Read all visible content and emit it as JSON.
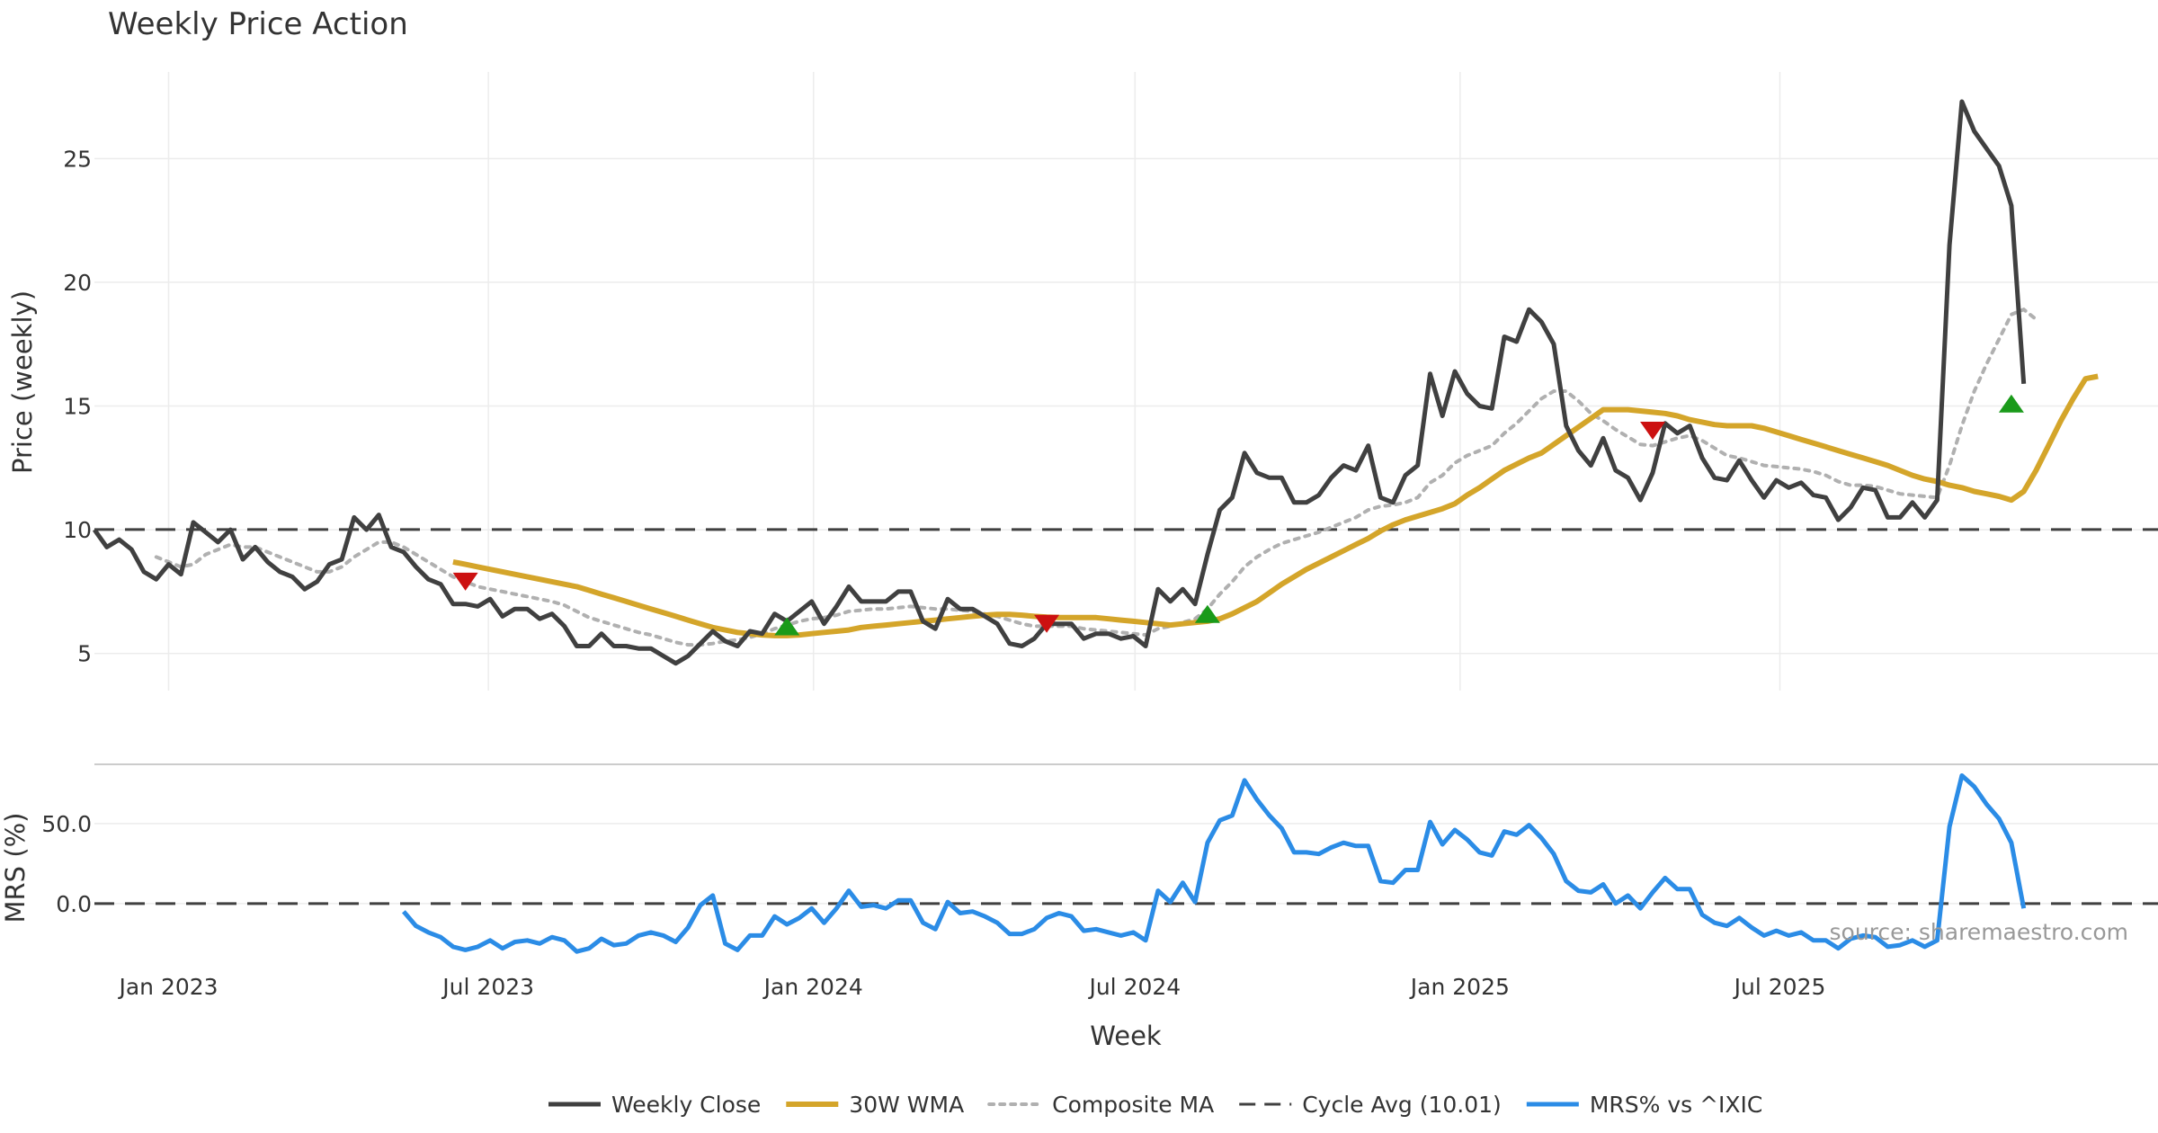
{
  "colors": {
    "close": "#404040",
    "wma": "#d4a52a",
    "composite": "#b0b0b0",
    "cycle": "#404040",
    "mrs": "#2b8ce6",
    "buy": "#1a9a1a",
    "sell": "#cc1111",
    "grid": "#ececec",
    "divider": "#cccccc"
  },
  "chart_data": {
    "type": "line",
    "title": "Weekly Price Action",
    "xlabel": "Week",
    "source": "source: sharemaestro.com",
    "x_ticks": [
      {
        "date": "2023-01-01",
        "label": "Jan 2023"
      },
      {
        "date": "2023-07-01",
        "label": "Jul 2023"
      },
      {
        "date": "2024-01-01",
        "label": "Jan 2024"
      },
      {
        "date": "2024-07-01",
        "label": "Jul 2024"
      },
      {
        "date": "2025-01-01",
        "label": "Jan 2025"
      },
      {
        "date": "2025-07-01",
        "label": "Jul 2025"
      }
    ],
    "x_range": [
      "2022-11-20",
      "2026-01-31"
    ],
    "x_start": "2022-11-20",
    "week_step_days": 7,
    "price_panel": {
      "ylabel": "Price (weekly)",
      "ylim": [
        3.5,
        28.5
      ],
      "y_ticks": [
        5,
        10,
        15,
        20,
        25
      ],
      "cycle_avg": 10.01,
      "weekly_close": [
        10.0,
        9.3,
        9.6,
        9.2,
        8.3,
        8.0,
        8.6,
        8.2,
        10.3,
        9.9,
        9.5,
        10.0,
        8.8,
        9.3,
        8.7,
        8.3,
        8.1,
        7.6,
        7.9,
        8.6,
        8.8,
        10.5,
        10.0,
        10.6,
        9.3,
        9.1,
        8.5,
        8.0,
        7.8,
        7.0,
        7.0,
        6.9,
        7.2,
        6.5,
        6.8,
        6.8,
        6.4,
        6.6,
        6.1,
        5.3,
        5.3,
        5.8,
        5.3,
        5.3,
        5.2,
        5.2,
        4.9,
        4.6,
        4.9,
        5.4,
        5.9,
        5.5,
        5.3,
        5.9,
        5.8,
        6.6,
        6.3,
        6.7,
        7.1,
        6.2,
        6.9,
        7.7,
        7.1,
        7.1,
        7.1,
        7.5,
        7.5,
        6.3,
        6.0,
        7.2,
        6.8,
        6.8,
        6.5,
        6.2,
        5.4,
        5.3,
        5.6,
        6.2,
        6.2,
        6.2,
        5.6,
        5.8,
        5.8,
        5.6,
        5.7,
        5.3,
        7.6,
        7.1,
        7.6,
        7.0,
        9.0,
        10.8,
        11.3,
        13.1,
        12.3,
        12.1,
        12.1,
        11.1,
        11.1,
        11.4,
        12.1,
        12.6,
        12.4,
        13.4,
        11.3,
        11.1,
        12.2,
        12.6,
        16.3,
        14.6,
        16.4,
        15.5,
        15.0,
        14.9,
        17.8,
        17.6,
        18.9,
        18.4,
        17.5,
        14.2,
        13.2,
        12.6,
        13.7,
        12.4,
        12.1,
        11.2,
        12.3,
        14.3,
        13.9,
        14.2,
        12.9,
        12.1,
        12.0,
        12.8,
        12.0,
        11.3,
        12.0,
        11.7,
        11.9,
        11.4,
        11.3,
        10.4,
        10.9,
        11.7,
        11.6,
        10.5,
        10.5,
        11.1,
        10.5,
        11.2,
        21.5,
        27.3,
        26.1,
        25.4,
        24.7,
        23.1,
        15.9
      ],
      "wma_30w": [
        null,
        null,
        null,
        null,
        null,
        null,
        null,
        null,
        null,
        null,
        null,
        null,
        null,
        null,
        null,
        null,
        null,
        null,
        null,
        null,
        null,
        null,
        null,
        null,
        null,
        null,
        null,
        null,
        null,
        8.7,
        8.6,
        8.5,
        8.4,
        8.3,
        8.2,
        8.1,
        8.0,
        7.9,
        7.8,
        7.7,
        7.55,
        7.4,
        7.25,
        7.1,
        6.95,
        6.8,
        6.65,
        6.5,
        6.35,
        6.2,
        6.05,
        5.95,
        5.85,
        5.8,
        5.75,
        5.72,
        5.72,
        5.75,
        5.8,
        5.85,
        5.9,
        5.95,
        6.05,
        6.1,
        6.15,
        6.2,
        6.25,
        6.3,
        6.35,
        6.4,
        6.45,
        6.5,
        6.55,
        6.58,
        6.58,
        6.55,
        6.5,
        6.47,
        6.45,
        6.45,
        6.45,
        6.45,
        6.4,
        6.35,
        6.3,
        6.25,
        6.2,
        6.15,
        6.2,
        6.25,
        6.3,
        6.4,
        6.6,
        6.85,
        7.1,
        7.45,
        7.8,
        8.1,
        8.4,
        8.65,
        8.9,
        9.15,
        9.4,
        9.65,
        9.95,
        10.2,
        10.4,
        10.55,
        10.7,
        10.85,
        11.05,
        11.4,
        11.7,
        12.05,
        12.4,
        12.65,
        12.9,
        13.1,
        13.45,
        13.8,
        14.15,
        14.5,
        14.85,
        14.85,
        14.85,
        14.8,
        14.75,
        14.7,
        14.6,
        14.45,
        14.35,
        14.25,
        14.2,
        14.2,
        14.2,
        14.1,
        13.95,
        13.8,
        13.65,
        13.5,
        13.35,
        13.2,
        13.05,
        12.9,
        12.75,
        12.6,
        12.4,
        12.2,
        12.05,
        11.95,
        11.8,
        11.7,
        11.55,
        11.45,
        11.35,
        11.2,
        11.55,
        12.4,
        13.4,
        14.4,
        15.3,
        16.1,
        16.2
      ],
      "composite_ma": [
        null,
        null,
        null,
        null,
        null,
        8.9,
        8.7,
        8.5,
        8.6,
        9.0,
        9.2,
        9.4,
        9.3,
        9.3,
        9.1,
        8.9,
        8.7,
        8.5,
        8.3,
        8.3,
        8.5,
        8.9,
        9.2,
        9.5,
        9.5,
        9.3,
        9.0,
        8.7,
        8.4,
        8.1,
        7.9,
        7.7,
        7.6,
        7.5,
        7.4,
        7.3,
        7.2,
        7.1,
        6.95,
        6.7,
        6.45,
        6.3,
        6.15,
        6.0,
        5.85,
        5.75,
        5.6,
        5.45,
        5.35,
        5.35,
        5.4,
        5.5,
        5.55,
        5.65,
        5.8,
        6.0,
        6.15,
        6.3,
        6.4,
        6.45,
        6.55,
        6.7,
        6.75,
        6.8,
        6.8,
        6.85,
        6.9,
        6.85,
        6.8,
        6.8,
        6.75,
        6.7,
        6.6,
        6.5,
        6.35,
        6.2,
        6.1,
        6.1,
        6.1,
        6.1,
        6.0,
        5.95,
        5.9,
        5.85,
        5.8,
        5.75,
        6.0,
        6.1,
        6.25,
        6.4,
        6.8,
        7.4,
        7.9,
        8.5,
        8.9,
        9.2,
        9.45,
        9.6,
        9.75,
        9.9,
        10.1,
        10.3,
        10.5,
        10.8,
        10.95,
        11.0,
        11.1,
        11.3,
        11.9,
        12.2,
        12.7,
        13.0,
        13.2,
        13.4,
        13.9,
        14.3,
        14.8,
        15.3,
        15.6,
        15.6,
        15.2,
        14.7,
        14.4,
        14.05,
        13.75,
        13.45,
        13.4,
        13.55,
        13.7,
        13.8,
        13.6,
        13.3,
        13.0,
        12.9,
        12.75,
        12.6,
        12.55,
        12.5,
        12.45,
        12.35,
        12.2,
        11.95,
        11.8,
        11.8,
        11.75,
        11.6,
        11.45,
        11.4,
        11.35,
        11.3,
        12.6,
        14.2,
        15.6,
        16.7,
        17.7,
        18.7,
        18.9,
        18.5
      ],
      "signals": [
        {
          "index": 30,
          "value": 7.9,
          "kind": "sell"
        },
        {
          "index": 56,
          "value": 6.1,
          "kind": "buy"
        },
        {
          "index": 77,
          "value": 6.2,
          "kind": "sell"
        },
        {
          "index": 90,
          "value": 6.6,
          "kind": "buy"
        },
        {
          "index": 126,
          "value": 14.0,
          "kind": "sell"
        },
        {
          "index": 155,
          "value": 15.1,
          "kind": "buy"
        }
      ]
    },
    "mrs_panel": {
      "ylabel": "MRS (%)",
      "ylim": [
        -31,
        87
      ],
      "y_ticks": [
        {
          "value": 0,
          "label": "0.0"
        },
        {
          "value": 50,
          "label": "50.0"
        }
      ],
      "zero_line": 0,
      "mrs_vs_ixic": [
        null,
        null,
        null,
        null,
        null,
        null,
        null,
        null,
        null,
        null,
        null,
        null,
        null,
        null,
        null,
        null,
        null,
        null,
        null,
        null,
        null,
        null,
        null,
        null,
        null,
        -5,
        -14,
        -18,
        -21,
        -27,
        -29,
        -27,
        -23,
        -28,
        -24,
        -23,
        -25,
        -21,
        -23,
        -30,
        -28,
        -22,
        -26,
        -25,
        -20,
        -18,
        -20,
        -24,
        -15,
        -1,
        5,
        -25,
        -29,
        -20,
        -20,
        -8,
        -13,
        -9,
        -3,
        -12,
        -3,
        8,
        -2,
        -1,
        -3,
        2,
        2,
        -12,
        -16,
        1,
        -6,
        -5,
        -8,
        -12,
        -19,
        -19,
        -16,
        -9,
        -6,
        -8,
        -17,
        -16,
        -18,
        -20,
        -18,
        -23,
        8,
        1,
        13,
        1,
        38,
        52,
        55,
        77,
        65,
        55,
        47,
        32,
        32,
        31,
        35,
        38,
        36,
        36,
        14,
        13,
        21,
        21,
        51,
        37,
        46,
        40,
        32,
        30,
        45,
        43,
        49,
        41,
        31,
        14,
        8,
        7,
        12,
        0,
        5,
        -3,
        7,
        16,
        9,
        9,
        -7,
        -12,
        -14,
        -9,
        -15,
        -20,
        -17,
        -20,
        -18,
        -23,
        -23,
        -28,
        -22,
        -20,
        -21,
        -27,
        -26,
        -23,
        -27,
        -23,
        48,
        80,
        73,
        62,
        53,
        38,
        -3
      ]
    },
    "legend": [
      {
        "label": "Weekly Close",
        "style": "solid",
        "color_key": "close",
        "width": 5
      },
      {
        "label": "30W WMA",
        "style": "solid",
        "color_key": "wma",
        "width": 6
      },
      {
        "label": "Composite MA",
        "style": "dotted",
        "color_key": "composite",
        "width": 4
      },
      {
        "label": "Cycle Avg (10.01)",
        "style": "dashed",
        "color_key": "cycle",
        "width": 3
      },
      {
        "label": "MRS% vs ^IXIC",
        "style": "solid",
        "color_key": "mrs",
        "width": 5
      }
    ]
  }
}
